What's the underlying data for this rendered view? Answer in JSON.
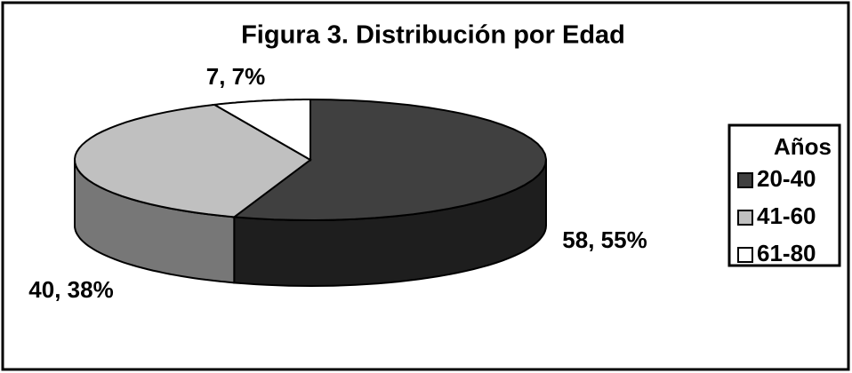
{
  "chart_data": {
    "type": "pie3d",
    "title": "Figura 3. Distribución por Edad",
    "legend_title": "Años",
    "categories": [
      "20-40",
      "41-60",
      "61-80"
    ],
    "values": [
      58,
      40,
      7
    ],
    "value_labels": [
      "58, 55%",
      "40, 38%",
      "7, 7%"
    ],
    "colors": [
      "#404040",
      "#c0c0c0",
      "#ffffff"
    ],
    "legend": "right"
  }
}
